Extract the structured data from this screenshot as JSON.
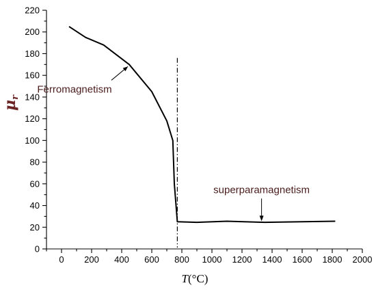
{
  "chart_data": {
    "type": "line",
    "xlabel_var": "T",
    "xlabel_unit": "(°C)",
    "ylabel_main": "μ",
    "ylabel_sub": "r",
    "xlim": [
      -100,
      2000
    ],
    "ylim": [
      0,
      220
    ],
    "xticks": [
      0,
      200,
      400,
      600,
      800,
      1000,
      1200,
      1400,
      1600,
      1800,
      2000
    ],
    "yticks": [
      0,
      20,
      40,
      60,
      80,
      100,
      120,
      140,
      160,
      180,
      200,
      220
    ],
    "grid": false,
    "series": [
      {
        "x": [
          50,
          160,
          280,
          450,
          600,
          700,
          740,
          750,
          770,
          900,
          1100,
          1350,
          1600,
          1820
        ],
        "y": [
          205,
          195,
          188,
          170,
          145,
          118,
          100,
          60,
          25,
          24.5,
          25.5,
          24.5,
          25,
          25.5
        ]
      }
    ],
    "reference_line_x": 770,
    "annotations": [
      {
        "text": "Ferromagnetism",
        "point_x": 450,
        "point_y": 170
      },
      {
        "text": "superparamagnetism",
        "point_x": 1330,
        "point_y": 25
      }
    ]
  }
}
